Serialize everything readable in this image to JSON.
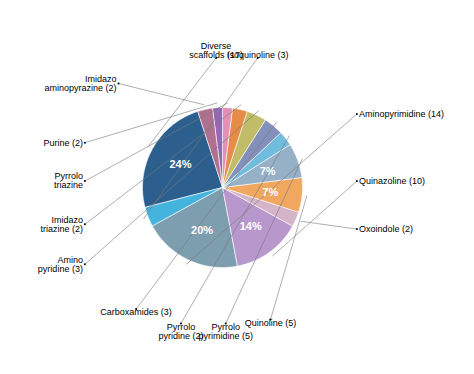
{
  "chart_data": {
    "type": "pie",
    "categories": [
      "Diverse\nscaffolds (17)",
      "Isoquinoline (3)",
      "Aminopyrimidine (14)",
      "Quinazoline (10)",
      "Oxoindole (2)",
      "Quinoline (5)",
      "Pyrrolo\npyrimidine (5)",
      "Pyrrolo\npyridine (2)",
      "Carboxamides (3)",
      "Amino\npyridine (3)",
      "Imidazo\ntriazine (2)",
      "Pyrrolo\ntriazine",
      "Purine (2)",
      "Imidazo\naminopyrazine (2)"
    ],
    "values": [
      24,
      4,
      20,
      14,
      3,
      7,
      7,
      3,
      4,
      4,
      3,
      2,
      2,
      3
    ],
    "colors": [
      "#2d5f8e",
      "#44b4de",
      "#7d9eae",
      "#b898cc",
      "#d4b4c8",
      "#f0a860",
      "#96b0c8",
      "#70bcdc",
      "#8490bc",
      "#c0bc68",
      "#e48c48",
      "#e490b4",
      "#9468b4",
      "#b07090"
    ],
    "value_labels": [
      "24%",
      null,
      "20%",
      "14%",
      null,
      "7%",
      "7%",
      null,
      null,
      null,
      null,
      null,
      null,
      null
    ],
    "data_labels": true
  }
}
